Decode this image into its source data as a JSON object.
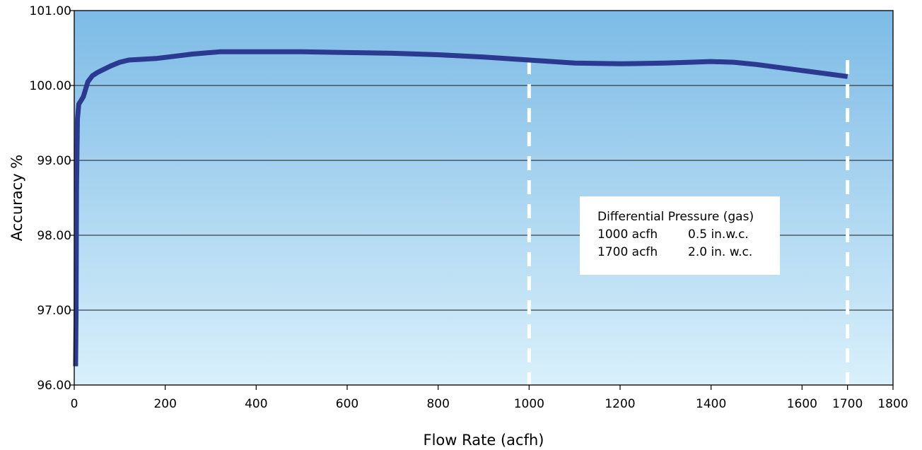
{
  "chart_data": {
    "type": "line",
    "title": "",
    "xlabel": "Flow Rate (acfh)",
    "ylabel": "Accuracy %",
    "xlim": [
      0,
      1800
    ],
    "ylim": [
      96.0,
      101.0
    ],
    "x_ticks": [
      "0",
      "200",
      "400",
      "600",
      "800",
      "1000",
      "1200",
      "1400",
      "1600",
      "1700",
      "1800"
    ],
    "x_tick_values": [
      0,
      200,
      400,
      600,
      800,
      1000,
      1200,
      1400,
      1600,
      1700,
      1800
    ],
    "y_ticks": [
      "96.00",
      "97.00",
      "98.00",
      "99.00",
      "100.00",
      "101.00"
    ],
    "y_tick_values": [
      96,
      97,
      98,
      99,
      100,
      101
    ],
    "grid": "horizontal",
    "series": [
      {
        "color": "#2b3990",
        "x": [
          3,
          4,
          5,
          7,
          10,
          15,
          20,
          25,
          30,
          40,
          50,
          60,
          80,
          100,
          120,
          150,
          180,
          220,
          260,
          300,
          320,
          400,
          500,
          600,
          700,
          800,
          900,
          1000,
          1100,
          1200,
          1300,
          1400,
          1450,
          1500,
          1600,
          1700
        ],
        "y": [
          96.25,
          97.0,
          98.6,
          99.55,
          99.75,
          99.8,
          99.85,
          99.95,
          100.05,
          100.13,
          100.17,
          100.2,
          100.26,
          100.31,
          100.34,
          100.35,
          100.36,
          100.39,
          100.42,
          100.44,
          100.45,
          100.45,
          100.45,
          100.44,
          100.43,
          100.41,
          100.38,
          100.34,
          100.3,
          100.29,
          100.3,
          100.32,
          100.31,
          100.28,
          100.2,
          100.12
        ]
      }
    ],
    "reference_lines": [
      {
        "x": 1000,
        "style": "dashed",
        "color": "#ffffff"
      },
      {
        "x": 1700,
        "style": "dashed",
        "color": "#ffffff"
      }
    ],
    "annotation": {
      "heading": "Differential Pressure (gas)",
      "rows": [
        {
          "flow": "1000 acfh",
          "pressure": "0.5 in.w.c."
        },
        {
          "flow": "1700 acfh",
          "pressure": "2.0 in. w.c."
        }
      ]
    },
    "colors": {
      "background_top": "#7dbbe6",
      "background_bottom": "#d9f0fb",
      "line": "#2b3990",
      "gridline": "#1a1a1a"
    }
  }
}
